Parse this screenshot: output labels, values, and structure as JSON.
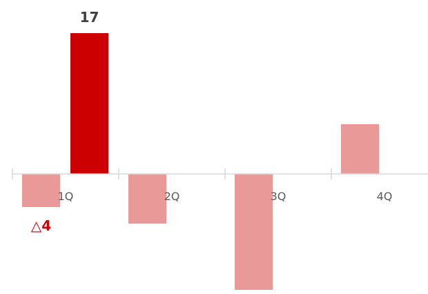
{
  "chart_data": {
    "type": "bar",
    "categories": [
      "1Q",
      "2Q",
      "3Q",
      "4Q"
    ],
    "series": [
      {
        "values": [
          -4,
          -6,
          -14,
          6
        ],
        "color": "#EA9999"
      },
      {
        "values": [
          17,
          null,
          null,
          null
        ],
        "color": "#CC0000"
      }
    ],
    "data_labels": [
      {
        "category": "1Q",
        "series_index": 0,
        "text": "△4",
        "color": "#CC0000"
      },
      {
        "category": "1Q",
        "series_index": 1,
        "text": "17",
        "color": "#404040"
      }
    ],
    "title": "",
    "xlabel": "",
    "ylabel": "",
    "ylim": [
      -14,
      17
    ],
    "axis_color": "#D9D9D9",
    "grid": false,
    "legend": "none"
  }
}
